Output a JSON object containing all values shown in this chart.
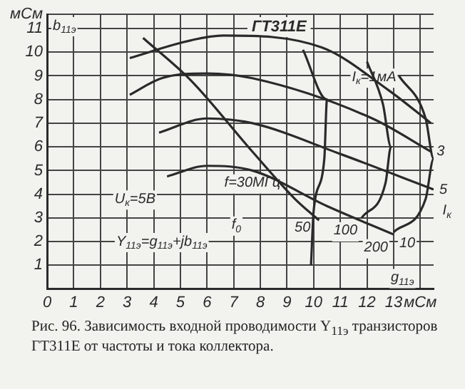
{
  "chart_data": {
    "type": "line",
    "title": "ГТ311Е",
    "xlabel": "g$_{11э}$",
    "ylabel": "b$_{11э}$",
    "xlim": [
      0,
      14.5
    ],
    "ylim": [
      0,
      11.6
    ],
    "xticks": [
      0,
      1,
      2,
      3,
      4,
      5,
      6,
      7,
      8,
      9,
      10,
      11,
      12,
      13,
      {
        "value": 14,
        "label": "мСм"
      }
    ],
    "yticks": [
      1,
      2,
      3,
      4,
      5,
      6,
      7,
      8,
      9,
      10,
      11,
      {
        "value": 11.6,
        "label": "мСм"
      }
    ],
    "grid": true,
    "legend": false,
    "marker": "none",
    "line_style": "solid",
    "series": [
      {
        "color": "#2a2a2a",
        "x": [
          3.1,
          5.4,
          6.6,
          10.3,
          12.8,
          14.4
        ],
        "values": [
          9.75,
          10.5,
          10.7,
          10.2,
          8.4,
          7.0
        ]
      },
      {
        "color": "#2a2a2a",
        "x": [
          3.1,
          4.3,
          6.0,
          7.7,
          12.2,
          14.4
        ],
        "values": [
          8.2,
          8.9,
          9.1,
          8.9,
          7.2,
          5.8
        ]
      },
      {
        "color": "#2a2a2a",
        "x": [
          4.2,
          6.0,
          7.7,
          11.0,
          14.5
        ],
        "values": [
          6.6,
          7.2,
          7.0,
          5.7,
          4.2
        ]
      },
      {
        "color": "#2a2a2a",
        "x": [
          4.5,
          6.0,
          7.7,
          10.5,
          13.0
        ],
        "values": [
          4.75,
          5.2,
          5.0,
          3.5,
          2.3
        ]
      },
      {
        "color": "#2a2a2a",
        "x": [
          3.6,
          5.4,
          7.7,
          9.3,
          10.2
        ],
        "values": [
          10.6,
          8.8,
          5.8,
          3.8,
          2.9
        ]
      },
      {
        "color": "#2a2a2a",
        "x": [
          9.6,
          10.5,
          10.4,
          10.0,
          9.9
        ],
        "values": [
          10.1,
          8.0,
          5.5,
          3.3,
          1.0
        ]
      },
      {
        "color": "#2a2a2a",
        "x": [
          12.0,
          12.6,
          12.9,
          12.7,
          11.8
        ],
        "values": [
          9.6,
          7.8,
          6.0,
          4.5,
          3.0
        ]
      },
      {
        "color": "#2a2a2a",
        "x": [
          13.2,
          14.2,
          14.5,
          14.2,
          13.0
        ],
        "values": [
          9.0,
          7.2,
          5.5,
          3.8,
          2.4
        ]
      }
    ],
    "annotations": [
      {
        "text": "I$_{к}$=1мА",
        "x": 12.8,
        "y": 8.4
      },
      {
        "text": "3",
        "x": 14.4,
        "y": 5.8
      },
      {
        "text": "5",
        "x": 14.5,
        "y": 4.2
      },
      {
        "text": "10",
        "x": 13.0,
        "y": 2.3
      },
      "I$_{к}$",
      {
        "text": "f=30МГц",
        "x": 7.7,
        "y": 5.8
      },
      {
        "text": "50",
        "x": 10.2,
        "y": 2.9
      },
      {
        "text": "100",
        "x": 11.8,
        "y": 3.0
      },
      {
        "text": "200",
        "x": 13.0,
        "y": 2.4
      },
      "f$_{0}$",
      "U$_{к}$=5В",
      "Y$_{11э}$=g$_{11э}$+jb$_{11э}$",
      "Рис. 96. Зависимость входной проводимости Y$_{11э}$ транзисторов ГТ311Е от частоты и тока коллектора."
    ]
  }
}
